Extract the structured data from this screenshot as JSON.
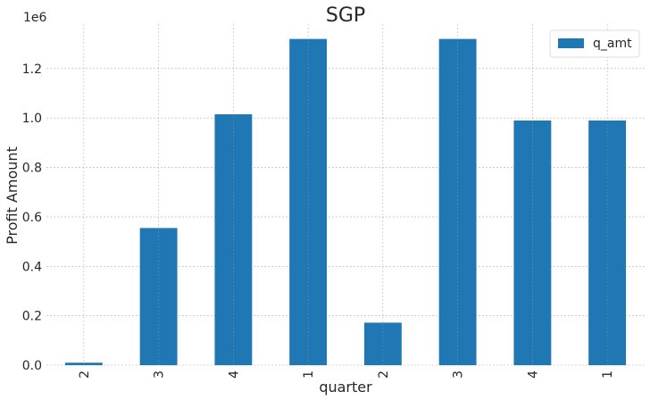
{
  "chart_data": {
    "type": "bar",
    "title": "SGP",
    "xlabel": "quarter",
    "ylabel": "Profit Amount",
    "y_offset_label": "1e6",
    "categories": [
      "2",
      "3",
      "4",
      "1",
      "2",
      "3",
      "4",
      "1"
    ],
    "series": [
      {
        "name": "q_amt",
        "color": "#1f77b4",
        "values": [
          10000,
          555000,
          1015000,
          1320000,
          172000,
          1320000,
          990000,
          990000
        ]
      }
    ],
    "ylim": [
      0,
      1380000
    ],
    "yticks": [
      0,
      200000,
      400000,
      600000,
      800000,
      1000000,
      1200000
    ],
    "ytick_labels": [
      "0.0",
      "0.2",
      "0.4",
      "0.6",
      "0.8",
      "1.0",
      "1.2"
    ],
    "grid": true,
    "legend_position": "top-right"
  }
}
